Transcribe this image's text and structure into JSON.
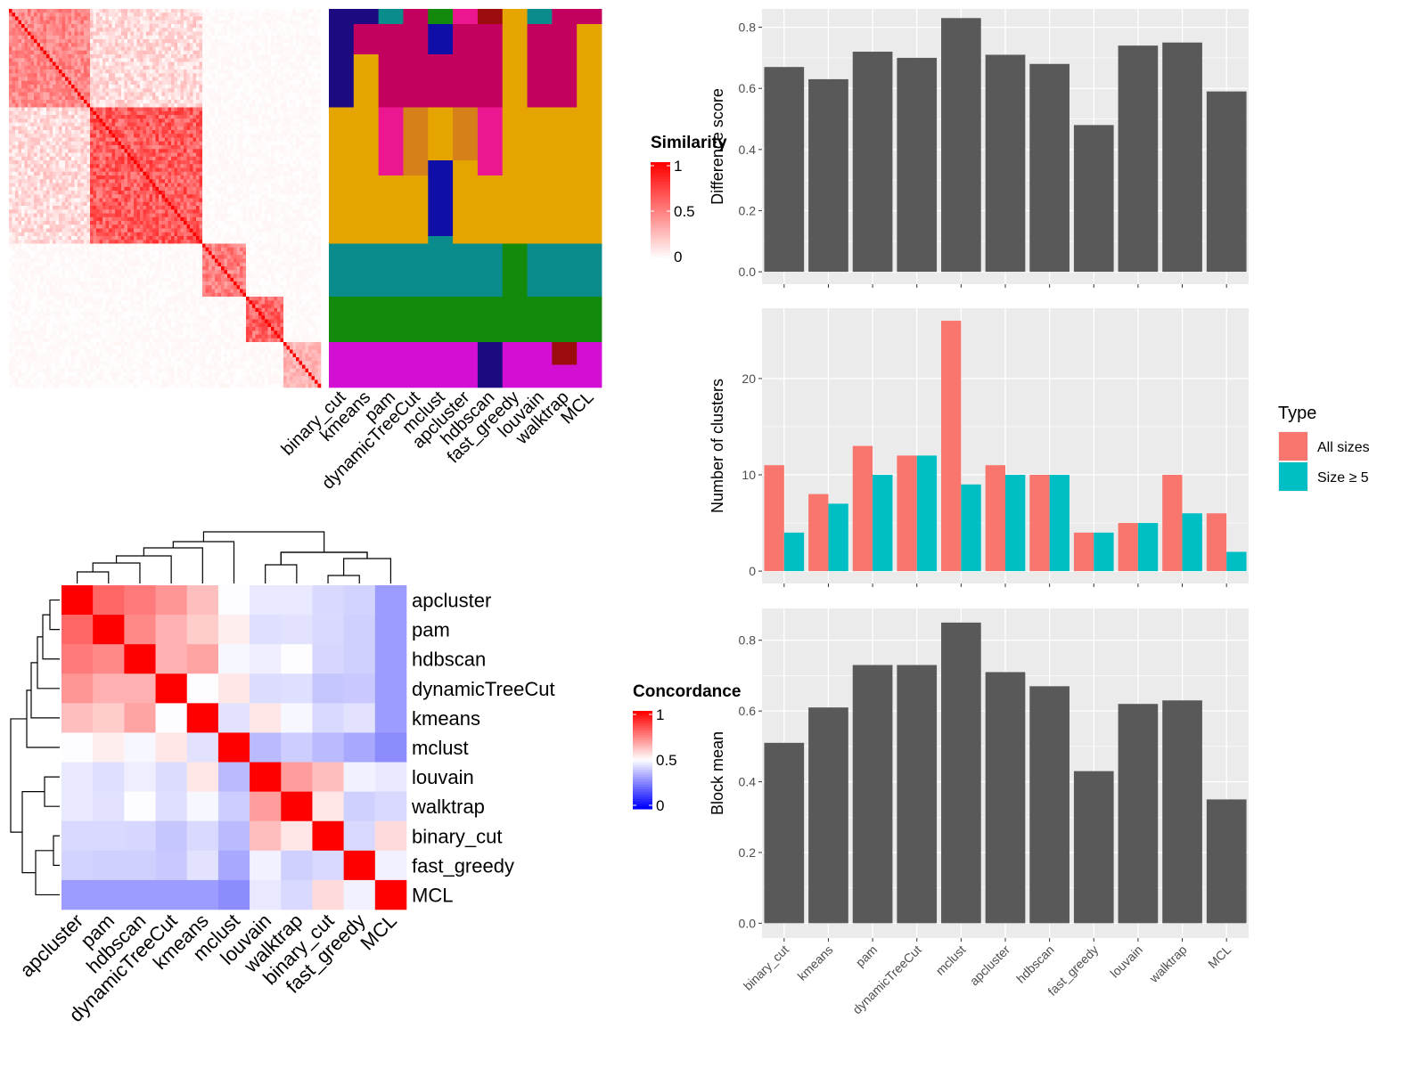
{
  "methods_order": [
    "binary_cut",
    "kmeans",
    "pam",
    "dynamicTreeCut",
    "mclust",
    "apcluster",
    "hdbscan",
    "fast_greedy",
    "louvain",
    "walktrap",
    "MCL"
  ],
  "similarity_legend": {
    "title": "Similarity",
    "ticks": [
      "1",
      "0.5",
      "0"
    ]
  },
  "concordance_legend": {
    "title": "Concordance",
    "ticks": [
      "1",
      "0.5",
      "0"
    ]
  },
  "colors": {
    "bar": "#595959",
    "panel_bg": "#ebebeb",
    "grid": "#ffffff",
    "all_sizes": "#f8766d",
    "size_ge5": "#00bfc4",
    "heat_high": "#ff0000",
    "heat_low": "#ffffff",
    "conc_low": "#0000ff",
    "class_palette": [
      "#e6a400",
      "#0b8c8c",
      "#138a0c",
      "#c4005f",
      "#d40fd4",
      "#1b0a80",
      "#9c0c0c",
      "#d6801a",
      "#ec1690",
      "#0f0fa8",
      "#e0e000",
      "#0a4f7a"
    ]
  },
  "similarity_heatmap": {
    "n": 100,
    "blocks": [
      {
        "from": 0,
        "to": 26,
        "level": 0.55
      },
      {
        "from": 26,
        "to": 62,
        "level": 0.75
      },
      {
        "from": 62,
        "to": 76,
        "level": 0.6
      },
      {
        "from": 76,
        "to": 88,
        "level": 0.7
      },
      {
        "from": 88,
        "to": 100,
        "level": 0.35
      }
    ]
  },
  "class_strips": {
    "methods": [
      "binary_cut",
      "kmeans",
      "pam",
      "dynamicTreeCut",
      "mclust",
      "apcluster",
      "hdbscan",
      "fast_greedy",
      "louvain",
      "walktrap",
      "MCL"
    ],
    "segments": [
      [
        [
          0,
          26,
          5
        ],
        [
          26,
          62,
          0
        ],
        [
          62,
          76,
          1
        ],
        [
          76,
          88,
          2
        ],
        [
          88,
          100,
          4
        ]
      ],
      [
        [
          0,
          4,
          5
        ],
        [
          4,
          12,
          3
        ],
        [
          12,
          62,
          0
        ],
        [
          62,
          76,
          1
        ],
        [
          76,
          88,
          2
        ],
        [
          88,
          100,
          4
        ]
      ],
      [
        [
          0,
          4,
          1
        ],
        [
          4,
          12,
          3
        ],
        [
          12,
          26,
          3
        ],
        [
          26,
          44,
          8
        ],
        [
          44,
          62,
          0
        ],
        [
          62,
          76,
          1
        ],
        [
          76,
          88,
          2
        ],
        [
          88,
          96,
          4
        ],
        [
          96,
          100,
          4
        ]
      ],
      [
        [
          0,
          4,
          3
        ],
        [
          4,
          12,
          3
        ],
        [
          12,
          26,
          3
        ],
        [
          26,
          44,
          7
        ],
        [
          44,
          62,
          0
        ],
        [
          62,
          76,
          1
        ],
        [
          76,
          88,
          2
        ],
        [
          88,
          100,
          4
        ]
      ],
      [
        [
          0,
          4,
          2
        ],
        [
          4,
          12,
          9
        ],
        [
          12,
          26,
          3
        ],
        [
          26,
          40,
          0
        ],
        [
          40,
          60,
          9
        ],
        [
          60,
          66,
          1
        ],
        [
          66,
          76,
          1
        ],
        [
          76,
          88,
          2
        ],
        [
          88,
          100,
          4
        ]
      ],
      [
        [
          0,
          4,
          8
        ],
        [
          4,
          12,
          3
        ],
        [
          12,
          26,
          3
        ],
        [
          26,
          40,
          7
        ],
        [
          40,
          62,
          0
        ],
        [
          62,
          76,
          1
        ],
        [
          76,
          88,
          2
        ],
        [
          88,
          100,
          4
        ]
      ],
      [
        [
          0,
          4,
          6
        ],
        [
          4,
          12,
          3
        ],
        [
          12,
          26,
          3
        ],
        [
          26,
          44,
          8
        ],
        [
          44,
          62,
          0
        ],
        [
          62,
          76,
          1
        ],
        [
          76,
          88,
          2
        ],
        [
          88,
          100,
          5
        ]
      ],
      [
        [
          0,
          4,
          0
        ],
        [
          4,
          12,
          0
        ],
        [
          12,
          26,
          0
        ],
        [
          26,
          44,
          0
        ],
        [
          44,
          62,
          0
        ],
        [
          62,
          76,
          2
        ],
        [
          76,
          88,
          2
        ],
        [
          88,
          100,
          4
        ]
      ],
      [
        [
          0,
          4,
          1
        ],
        [
          4,
          12,
          3
        ],
        [
          12,
          26,
          3
        ],
        [
          26,
          44,
          0
        ],
        [
          44,
          62,
          0
        ],
        [
          62,
          76,
          1
        ],
        [
          76,
          88,
          2
        ],
        [
          88,
          100,
          4
        ]
      ],
      [
        [
          0,
          4,
          3
        ],
        [
          4,
          12,
          3
        ],
        [
          12,
          26,
          3
        ],
        [
          26,
          44,
          0
        ],
        [
          44,
          62,
          0
        ],
        [
          62,
          76,
          1
        ],
        [
          76,
          88,
          2
        ],
        [
          88,
          94,
          6
        ],
        [
          94,
          100,
          4
        ]
      ],
      [
        [
          0,
          4,
          3
        ],
        [
          4,
          12,
          0
        ],
        [
          12,
          26,
          0
        ],
        [
          26,
          44,
          0
        ],
        [
          44,
          62,
          0
        ],
        [
          62,
          76,
          1
        ],
        [
          76,
          88,
          2
        ],
        [
          88,
          100,
          4
        ]
      ]
    ]
  },
  "concordance_heatmap": {
    "rows": [
      "apcluster",
      "pam",
      "hdbscan",
      "dynamicTreeCut",
      "kmeans",
      "mclust",
      "louvain",
      "walktrap",
      "binary_cut",
      "fast_greedy",
      "MCL"
    ],
    "cols": [
      "apcluster",
      "pam",
      "hdbscan",
      "dynamicTreeCut",
      "kmeans",
      "mclust",
      "louvain",
      "walktrap",
      "binary_cut",
      "fast_greedy",
      "MCL"
    ],
    "values": [
      [
        1.0,
        0.85,
        0.82,
        0.78,
        0.72,
        0.62,
        0.55,
        0.55,
        0.5,
        0.48,
        0.3
      ],
      [
        0.85,
        1.0,
        0.8,
        0.74,
        0.7,
        0.65,
        0.52,
        0.53,
        0.5,
        0.47,
        0.3
      ],
      [
        0.82,
        0.8,
        1.0,
        0.74,
        0.76,
        0.6,
        0.57,
        0.62,
        0.49,
        0.47,
        0.3
      ],
      [
        0.78,
        0.74,
        0.74,
        1.0,
        0.62,
        0.66,
        0.51,
        0.52,
        0.44,
        0.45,
        0.3
      ],
      [
        0.72,
        0.7,
        0.76,
        0.62,
        1.0,
        0.53,
        0.66,
        0.6,
        0.5,
        0.53,
        0.3
      ],
      [
        0.62,
        0.65,
        0.6,
        0.66,
        0.53,
        1.0,
        0.4,
        0.46,
        0.4,
        0.34,
        0.25
      ],
      [
        0.55,
        0.52,
        0.57,
        0.51,
        0.66,
        0.4,
        1.0,
        0.77,
        0.72,
        0.58,
        0.55
      ],
      [
        0.55,
        0.53,
        0.62,
        0.52,
        0.6,
        0.46,
        0.77,
        1.0,
        0.66,
        0.47,
        0.5
      ],
      [
        0.5,
        0.5,
        0.49,
        0.44,
        0.5,
        0.4,
        0.72,
        0.66,
        1.0,
        0.5,
        0.68
      ],
      [
        0.48,
        0.47,
        0.47,
        0.45,
        0.53,
        0.34,
        0.58,
        0.47,
        0.5,
        1.0,
        0.58
      ],
      [
        0.3,
        0.3,
        0.3,
        0.3,
        0.3,
        0.25,
        0.55,
        0.5,
        0.68,
        0.58,
        1.0
      ]
    ]
  },
  "chart_data": [
    {
      "type": "bar",
      "categories": [
        "binary_cut",
        "kmeans",
        "pam",
        "dynamicTreeCut",
        "mclust",
        "apcluster",
        "hdbscan",
        "fast_greedy",
        "louvain",
        "walktrap",
        "MCL"
      ],
      "values": [
        0.67,
        0.63,
        0.72,
        0.7,
        0.83,
        0.71,
        0.68,
        0.48,
        0.74,
        0.75,
        0.59
      ],
      "title": "",
      "xlabel": "",
      "ylabel": "Difference score",
      "ylim": [
        0,
        0.86
      ],
      "yticks": [
        0.0,
        0.2,
        0.4,
        0.6,
        0.8
      ],
      "ytick_labels": [
        "0.0",
        "0.2",
        "0.4",
        "0.6",
        "0.8"
      ]
    },
    {
      "type": "bar",
      "categories": [
        "binary_cut",
        "kmeans",
        "pam",
        "dynamicTreeCut",
        "mclust",
        "apcluster",
        "hdbscan",
        "fast_greedy",
        "louvain",
        "walktrap",
        "MCL"
      ],
      "series": [
        {
          "name": "All sizes",
          "values": [
            11,
            8,
            13,
            12,
            26,
            11,
            10,
            4,
            5,
            10,
            6
          ]
        },
        {
          "name": "Size ≥ 5",
          "values": [
            4,
            7,
            10,
            12,
            9,
            10,
            10,
            4,
            5,
            6,
            2
          ]
        }
      ],
      "title": "",
      "xlabel": "",
      "ylabel": "Number of clusters",
      "ylim": [
        0,
        27.3
      ],
      "yticks": [
        0,
        10,
        20
      ],
      "ytick_labels": [
        "0",
        "10",
        "20"
      ],
      "legend": {
        "title": "Type",
        "labels": [
          "All sizes",
          "Size ≥ 5"
        ],
        "placement": "right"
      }
    },
    {
      "type": "bar",
      "categories": [
        "binary_cut",
        "kmeans",
        "pam",
        "dynamicTreeCut",
        "mclust",
        "apcluster",
        "hdbscan",
        "fast_greedy",
        "louvain",
        "walktrap",
        "MCL"
      ],
      "values": [
        0.51,
        0.61,
        0.73,
        0.73,
        0.85,
        0.71,
        0.67,
        0.43,
        0.62,
        0.63,
        0.35
      ],
      "title": "",
      "xlabel": "",
      "ylabel": "Block mean",
      "ylim": [
        0,
        0.89
      ],
      "yticks": [
        0.0,
        0.2,
        0.4,
        0.6,
        0.8
      ],
      "ytick_labels": [
        "0.0",
        "0.2",
        "0.4",
        "0.6",
        "0.8"
      ]
    }
  ]
}
